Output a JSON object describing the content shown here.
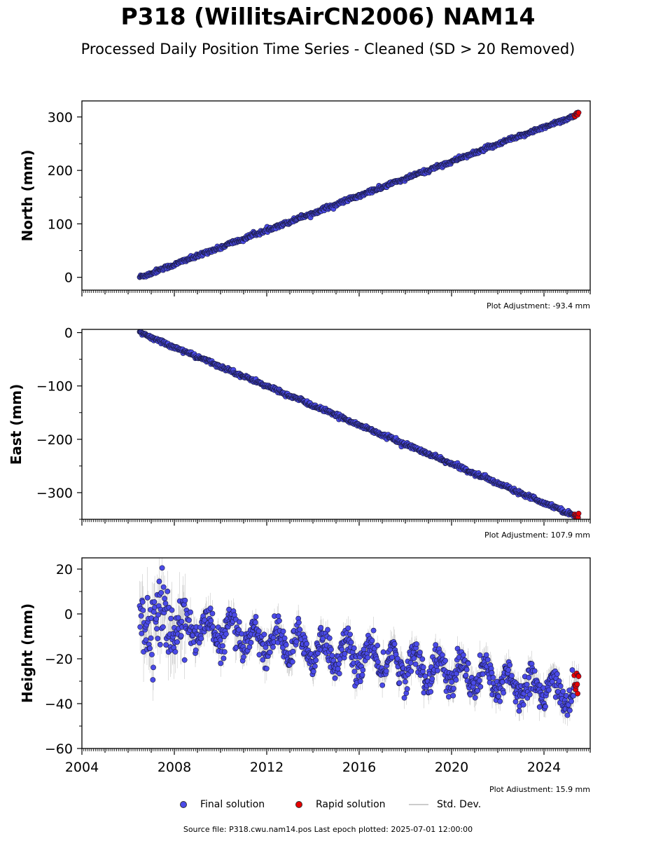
{
  "header": {
    "title": "P318 (WillitsAirCN2006) NAM14",
    "subtitle": "Processed Daily Position Time Series - Cleaned (SD > 20 Removed)"
  },
  "legend": {
    "final_label": "Final solution",
    "rapid_label": "Rapid solution",
    "std_label": "Std. Dev."
  },
  "footer": {
    "source": "Source file: P318.cwu.nam14.pos  Last epoch plotted: 2025-07-01 12:00:00"
  },
  "colors": {
    "final": "#4a4ae8",
    "rapid": "#e80000",
    "stddev": "#999999"
  },
  "chart_data": [
    {
      "type": "scatter",
      "name": "north",
      "ylabel": "North (mm)",
      "adjustment": "Plot Adjustment: -93.4 mm",
      "xlim": [
        2004.0,
        2026.0
      ],
      "ylim": [
        -24,
        330
      ],
      "yticks": [
        0,
        100,
        200,
        300
      ],
      "ytick_labels": [
        "0",
        "100",
        "200",
        "300"
      ],
      "x_start": 2006.5,
      "x_end": 2025.5,
      "y_start": 0,
      "y_end": 305,
      "noise": 1.8,
      "seasonal": 0.8,
      "rapid_from": 2025.3
    },
    {
      "type": "scatter",
      "name": "east",
      "ylabel": "East (mm)",
      "adjustment": "Plot Adjustment: 107.9 mm",
      "xlim": [
        2004.0,
        2026.0
      ],
      "ylim": [
        -350,
        6
      ],
      "yticks": [
        0,
        -100,
        -200,
        -300
      ],
      "ytick_labels": [
        "0",
        "−100",
        "−200",
        "−300"
      ],
      "x_start": 2006.5,
      "x_end": 2025.5,
      "y_start": 0,
      "y_end": -346,
      "noise": 1.8,
      "seasonal": 0.8,
      "rapid_from": 2025.3
    },
    {
      "type": "scatter",
      "name": "height",
      "ylabel": "Height (mm)",
      "adjustment": "Plot Adjustment: 15.9 mm",
      "xlim": [
        2004.0,
        2026.0
      ],
      "ylim": [
        -60,
        25
      ],
      "yticks": [
        20,
        0,
        -20,
        -40,
        -60
      ],
      "ytick_labels": [
        "20",
        "0",
        "−20",
        "−40",
        "−60"
      ],
      "xticks": [
        2004,
        2008,
        2012,
        2016,
        2020,
        2024
      ],
      "xtick_labels": [
        "2004",
        "2008",
        "2012",
        "2016",
        "2020",
        "2024"
      ],
      "x_start": 2006.5,
      "x_end": 2025.5,
      "y_start": -2,
      "y_end": -36,
      "noise": 3.5,
      "seasonal": 6,
      "rapid_from": 2025.3
    }
  ]
}
